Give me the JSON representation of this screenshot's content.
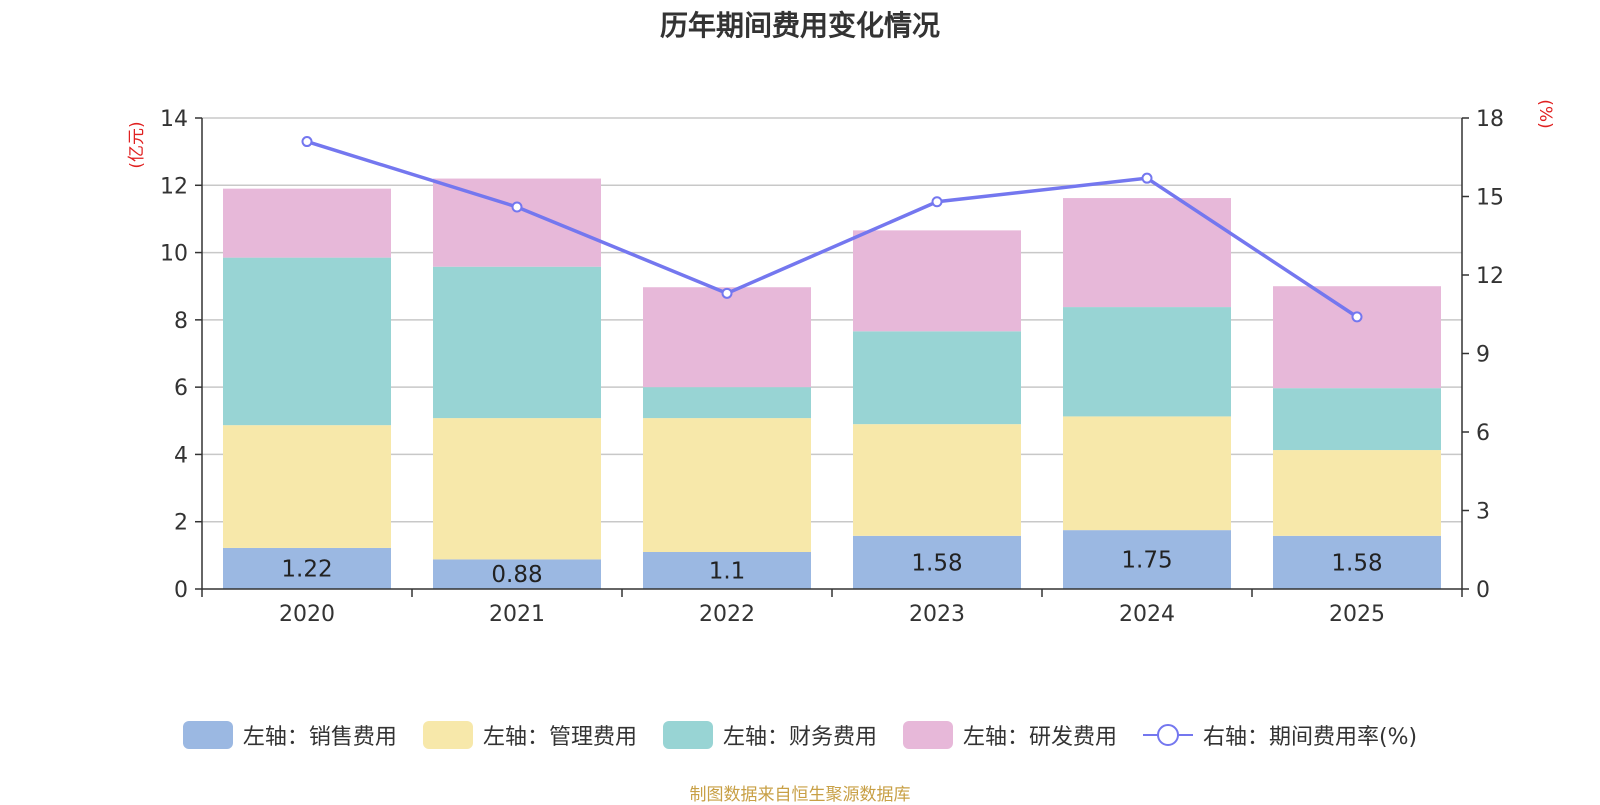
{
  "chart_data": {
    "type": "bar",
    "title": "历年期间费用变化情况",
    "categories": [
      "2020",
      "2021",
      "2022",
      "2023",
      "2024",
      "2025"
    ],
    "y_left": {
      "label": "(亿元)",
      "range": [
        0,
        14
      ],
      "ticks": [
        0,
        2,
        4,
        6,
        8,
        10,
        12,
        14
      ]
    },
    "y_right": {
      "label": "(%)",
      "range": [
        0,
        18
      ],
      "ticks": [
        0,
        3,
        6,
        9,
        12,
        15,
        18
      ]
    },
    "series": [
      {
        "name": "左轴：销售费用",
        "axis": "left",
        "color": "#9bb8e2",
        "values": [
          1.22,
          0.88,
          1.1,
          1.58,
          1.75,
          1.58
        ],
        "labels": [
          "1.22",
          "0.88",
          "1.1",
          "1.58",
          "1.75",
          "1.58"
        ]
      },
      {
        "name": "左轴：管理费用",
        "axis": "left",
        "color": "#f7e8aa",
        "values": [
          3.65,
          4.2,
          3.98,
          3.32,
          3.38,
          2.55
        ]
      },
      {
        "name": "左轴：财务费用",
        "axis": "left",
        "color": "#98d4d4",
        "values": [
          4.98,
          4.5,
          0.92,
          2.76,
          3.25,
          1.84
        ]
      },
      {
        "name": "左轴：研发费用",
        "axis": "left",
        "color": "#e7b8d9",
        "values": [
          2.05,
          2.62,
          2.97,
          3.0,
          3.24,
          3.03
        ]
      },
      {
        "name": "右轴：期间费用率(%)",
        "axis": "right",
        "type": "line",
        "color": "#7477ef",
        "values": [
          17.1,
          14.6,
          11.3,
          14.8,
          15.7,
          10.4
        ]
      }
    ],
    "grid": true,
    "legend": "bottom"
  },
  "source_note": "制图数据来自恒生聚源数据库"
}
